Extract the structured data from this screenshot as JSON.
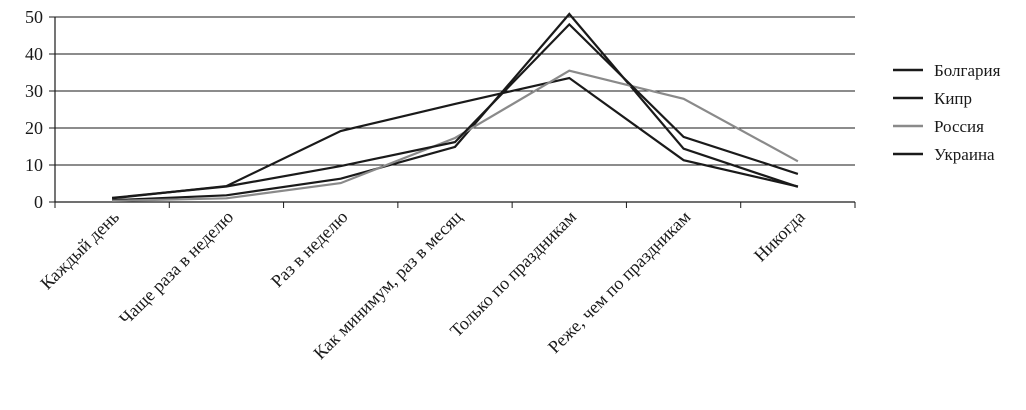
{
  "chart_data": {
    "type": "line",
    "title": "",
    "xlabel": "",
    "ylabel": "",
    "categories": [
      "Каждый день",
      "Чаще раза в неделю",
      "Раз в неделю",
      "Как минимум, раз в месяц",
      "Только по праздникам",
      "Реже, чем по праздникам",
      "Никогда"
    ],
    "ylim": [
      0,
      50
    ],
    "yticks": [
      0,
      10,
      20,
      30,
      40,
      50
    ],
    "grid": true,
    "legend_position": "right",
    "series": [
      {
        "name": "Болгария",
        "color": "#1a1a1a",
        "values": [
          1.0,
          4.3,
          19.2,
          26.5,
          33.5,
          11.3,
          4.2
        ]
      },
      {
        "name": "Кипр",
        "color": "#1a1a1a",
        "values": [
          0.5,
          1.8,
          6.3,
          14.9,
          50.8,
          14.4,
          4.1
        ]
      },
      {
        "name": "Россия",
        "color": "#8a8a8a",
        "values": [
          0.3,
          1.0,
          5.1,
          17.3,
          35.5,
          27.9,
          11.0
        ]
      },
      {
        "name": "Украина",
        "color": "#1a1a1a",
        "values": [
          1.1,
          4.2,
          9.7,
          16.2,
          48.0,
          17.6,
          7.6
        ]
      }
    ]
  }
}
